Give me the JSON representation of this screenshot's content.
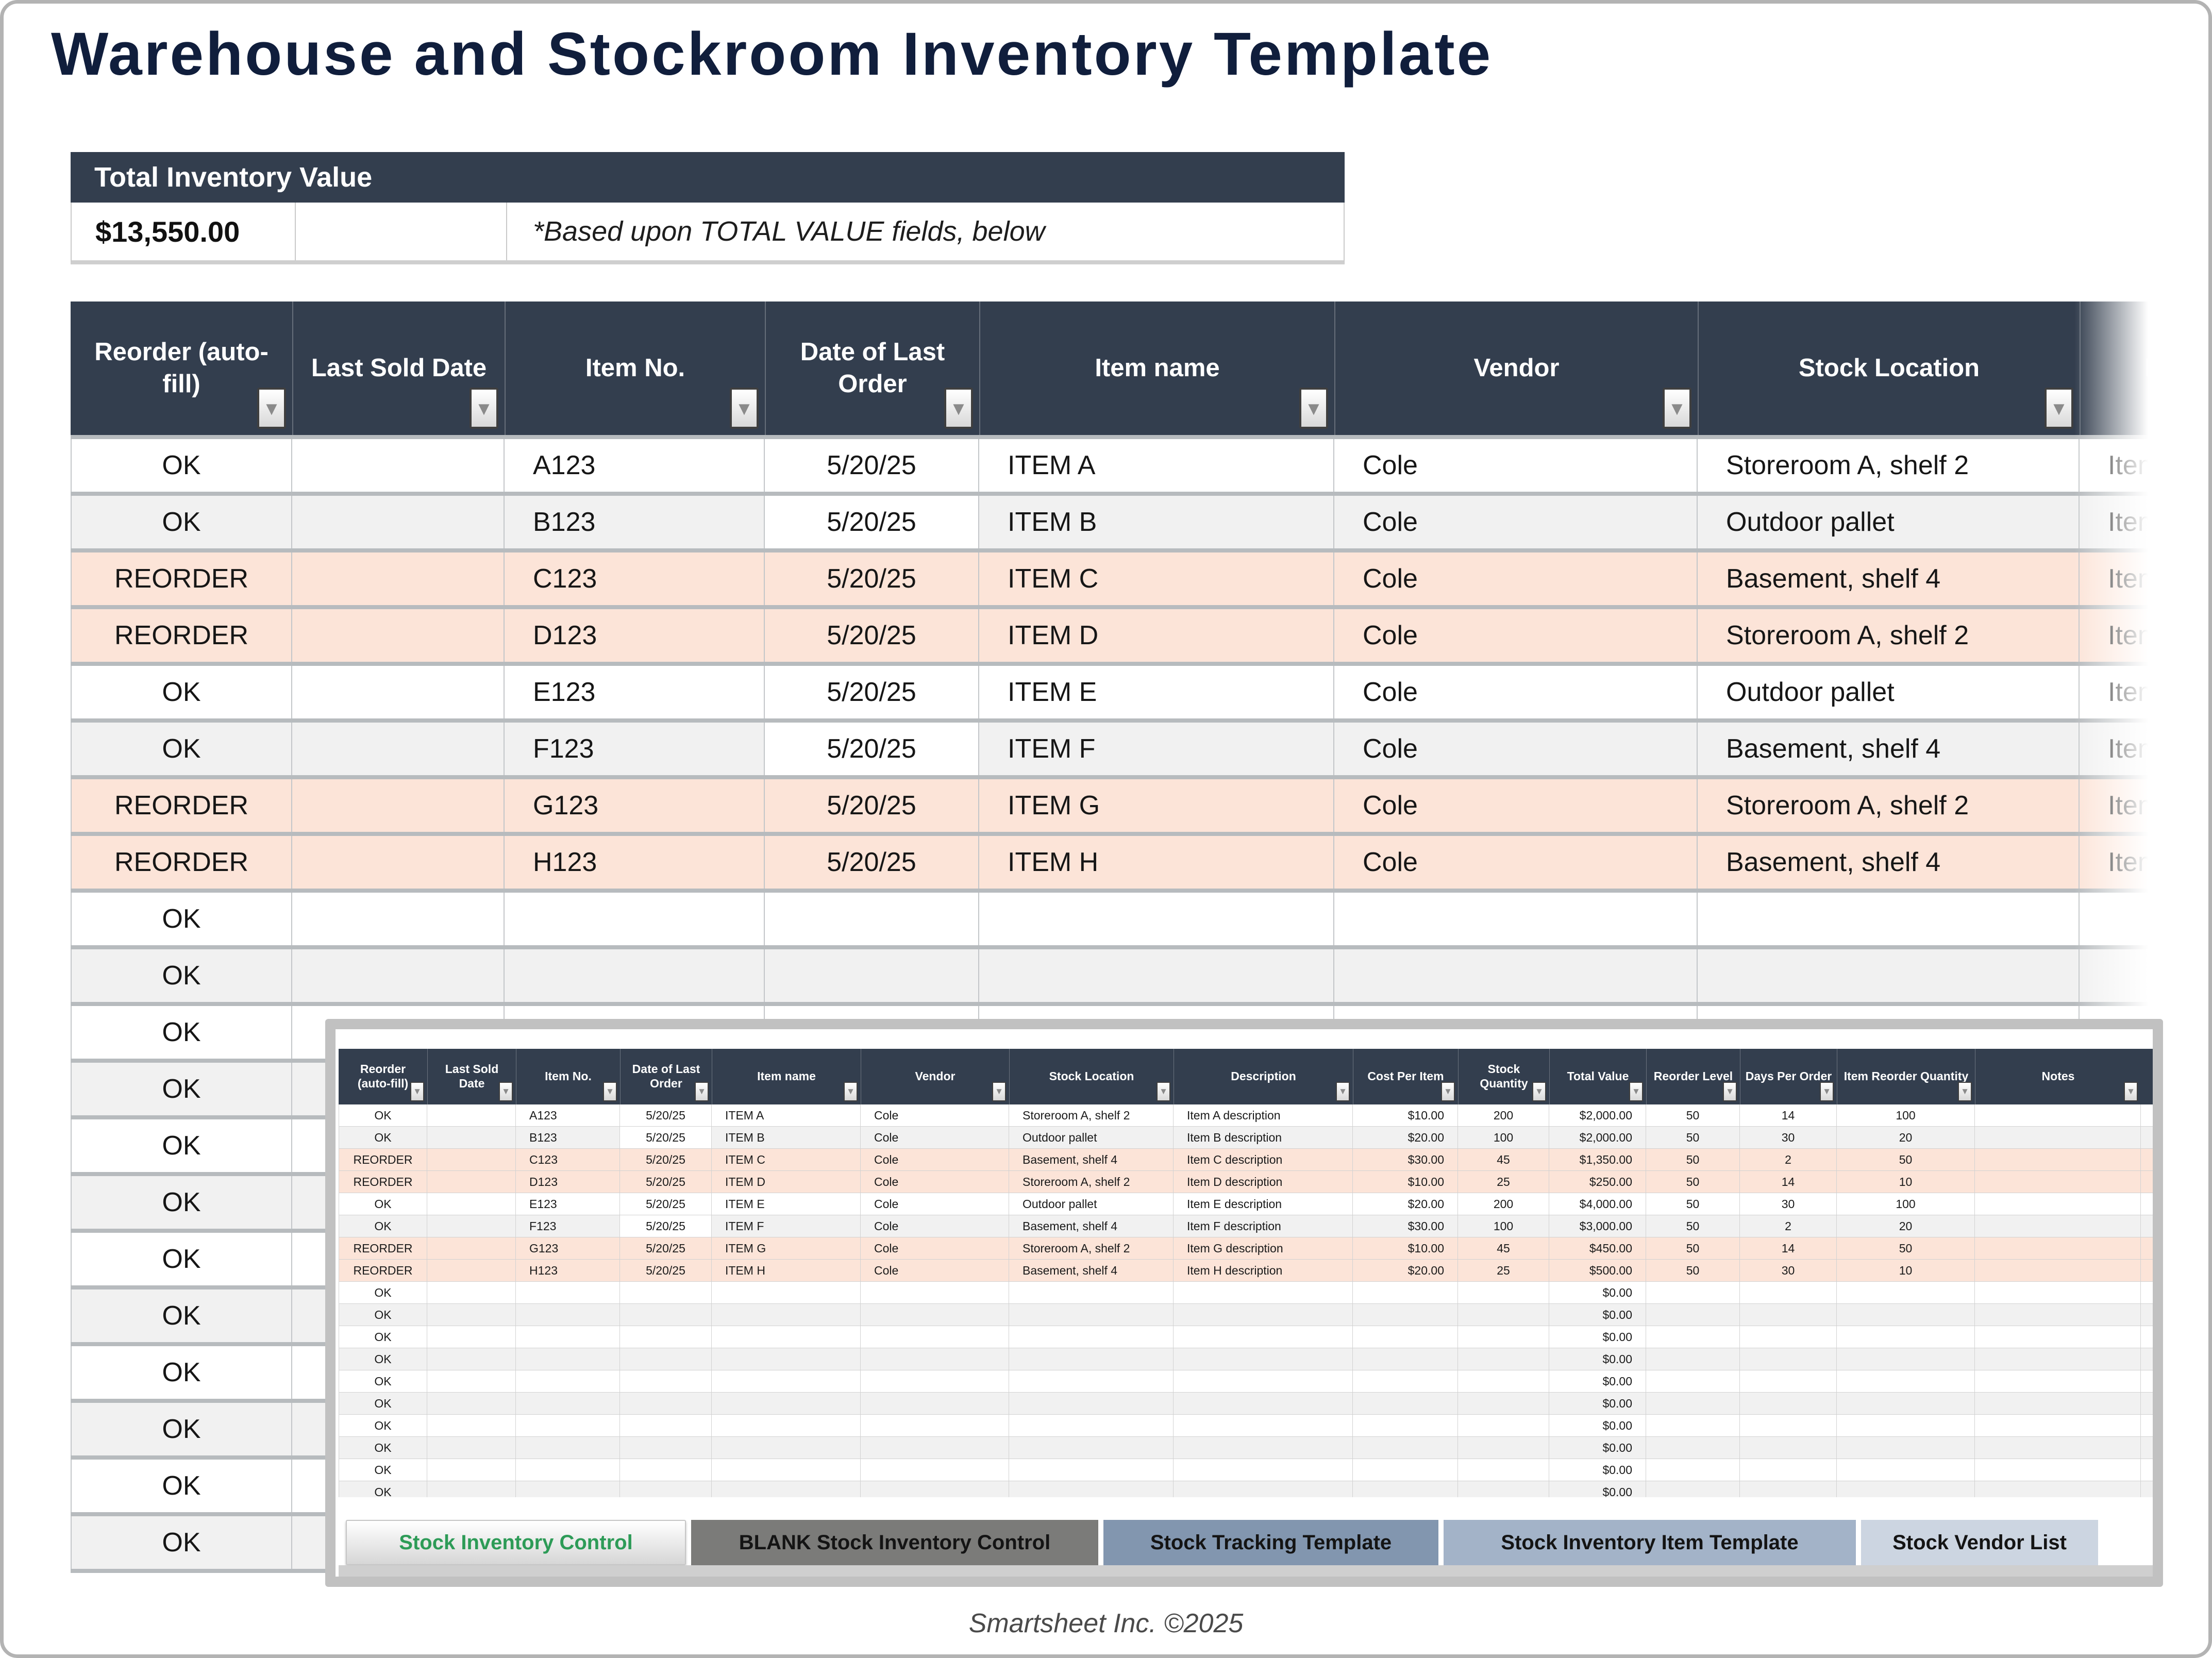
{
  "page": {
    "title": "Warehouse and Stockroom Inventory Template",
    "footer": "Smartsheet Inc. ©2025"
  },
  "summary": {
    "header": "Total Inventory Value",
    "value": "$13,550.00",
    "note": "*Based upon TOTAL VALUE fields, below"
  },
  "main_table": {
    "filter_icon": "▼",
    "columns": [
      "Reorder (auto-fill)",
      "Last Sold Date",
      "Item No.",
      "Date of Last Order",
      "Item name",
      "Vendor",
      "Stock Location",
      "Description"
    ],
    "rows": [
      [
        "OK",
        "",
        "A123",
        "5/20/25",
        "ITEM A",
        "Cole",
        "Storeroom A, shelf 2",
        "Item A description"
      ],
      [
        "OK",
        "",
        "B123",
        "5/20/25",
        "ITEM B",
        "Cole",
        "Outdoor pallet",
        "Item B description"
      ],
      [
        "REORDER",
        "",
        "C123",
        "5/20/25",
        "ITEM C",
        "Cole",
        "Basement, shelf 4",
        "Item C description"
      ],
      [
        "REORDER",
        "",
        "D123",
        "5/20/25",
        "ITEM D",
        "Cole",
        "Storeroom A, shelf 2",
        "Item D description"
      ],
      [
        "OK",
        "",
        "E123",
        "5/20/25",
        "ITEM E",
        "Cole",
        "Outdoor pallet",
        "Item E description"
      ],
      [
        "OK",
        "",
        "F123",
        "5/20/25",
        "ITEM F",
        "Cole",
        "Basement, shelf 4",
        "Item F description"
      ],
      [
        "REORDER",
        "",
        "G123",
        "5/20/25",
        "ITEM G",
        "Cole",
        "Storeroom A, shelf 2",
        "Item G description"
      ],
      [
        "REORDER",
        "",
        "H123",
        "5/20/25",
        "ITEM H",
        "Cole",
        "Basement, shelf 4",
        "Item H description"
      ]
    ],
    "filler_status": "OK",
    "filler_count": 12
  },
  "inset": {
    "filter_icon": "▼",
    "columns": [
      "Reorder (auto-fill)",
      "Last Sold Date",
      "Item No.",
      "Date of Last Order",
      "Item name",
      "Vendor",
      "Stock Location",
      "Description",
      "Cost Per Item",
      "Stock Quantity",
      "Total Value",
      "Reorder Level",
      "Days Per Order",
      "Item Reorder Quantity",
      "Notes"
    ],
    "rows": [
      [
        "OK",
        "",
        "A123",
        "5/20/25",
        "ITEM A",
        "Cole",
        "Storeroom A, shelf 2",
        "Item A description",
        "$10.00",
        "200",
        "$2,000.00",
        "50",
        "14",
        "100",
        ""
      ],
      [
        "OK",
        "",
        "B123",
        "5/20/25",
        "ITEM B",
        "Cole",
        "Outdoor pallet",
        "Item B description",
        "$20.00",
        "100",
        "$2,000.00",
        "50",
        "30",
        "20",
        ""
      ],
      [
        "REORDER",
        "",
        "C123",
        "5/20/25",
        "ITEM C",
        "Cole",
        "Basement, shelf 4",
        "Item C description",
        "$30.00",
        "45",
        "$1,350.00",
        "50",
        "2",
        "50",
        ""
      ],
      [
        "REORDER",
        "",
        "D123",
        "5/20/25",
        "ITEM D",
        "Cole",
        "Storeroom A, shelf 2",
        "Item D description",
        "$10.00",
        "25",
        "$250.00",
        "50",
        "14",
        "10",
        ""
      ],
      [
        "OK",
        "",
        "E123",
        "5/20/25",
        "ITEM E",
        "Cole",
        "Outdoor pallet",
        "Item E description",
        "$20.00",
        "200",
        "$4,000.00",
        "50",
        "30",
        "100",
        ""
      ],
      [
        "OK",
        "",
        "F123",
        "5/20/25",
        "ITEM F",
        "Cole",
        "Basement, shelf 4",
        "Item F description",
        "$30.00",
        "100",
        "$3,000.00",
        "50",
        "2",
        "20",
        ""
      ],
      [
        "REORDER",
        "",
        "G123",
        "5/20/25",
        "ITEM G",
        "Cole",
        "Storeroom A, shelf 2",
        "Item G description",
        "$10.00",
        "45",
        "$450.00",
        "50",
        "14",
        "50",
        ""
      ],
      [
        "REORDER",
        "",
        "H123",
        "5/20/25",
        "ITEM H",
        "Cole",
        "Basement, shelf 4",
        "Item H description",
        "$20.00",
        "25",
        "$500.00",
        "50",
        "30",
        "10",
        ""
      ]
    ],
    "filler_status": "OK",
    "filler_total_value": "$0.00",
    "filler_count": 10,
    "tabs": [
      {
        "label": "Stock Inventory Control",
        "active": true
      },
      {
        "label": "BLANK Stock Inventory Control",
        "active": false
      },
      {
        "label": "Stock Tracking Template",
        "active": false
      },
      {
        "label": "Stock Inventory Item Template",
        "active": false
      },
      {
        "label": "Stock Vendor List",
        "active": false
      }
    ]
  },
  "colors": {
    "header_navy": "#333e4e",
    "title_navy": "#101e3c",
    "reorder_row": "#fce4d8",
    "alt_row": "#f1f1f1",
    "row_gap": "#b7bbbe",
    "active_tab_text": "#2d9b57",
    "tab_colors": [
      "#7b7b79",
      "#8296af",
      "#a3b3c8",
      "#ccd5e1"
    ]
  }
}
